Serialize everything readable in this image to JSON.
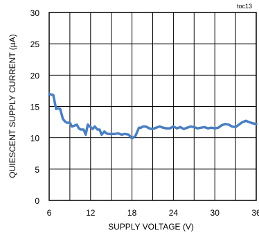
{
  "chart_data": {
    "type": "line",
    "tag": "toc13",
    "xlabel": "SUPPLY VOLTAGE (V)",
    "ylabel": "QUIESCENT SUPPLY CURRENT (µA)",
    "xlim": [
      6,
      36
    ],
    "ylim": [
      0,
      30
    ],
    "xticks": [
      6,
      12,
      18,
      24,
      30,
      36
    ],
    "xtick_labels": [
      "6",
      "12",
      "18",
      "24",
      "30",
      "36"
    ],
    "yticks": [
      0,
      5,
      10,
      15,
      20,
      25,
      30
    ],
    "ytick_labels": [
      "0",
      "5",
      "10",
      "15",
      "20",
      "25",
      "30"
    ],
    "grid": true,
    "line_color": "#4a7fc0",
    "series": [
      {
        "x": [
          6.0,
          6.3,
          6.6,
          7.0,
          7.3,
          7.6,
          8.0,
          8.3,
          8.6,
          9.0,
          9.3,
          9.6,
          10.0,
          10.3,
          10.6,
          11.0,
          11.3,
          11.6,
          12.0,
          12.3,
          12.6,
          13.0,
          13.3,
          13.6,
          14.0,
          14.3,
          14.6,
          15.0,
          15.5,
          16.0,
          16.5,
          17.0,
          17.5,
          18.0,
          18.5,
          19.0,
          19.3,
          19.6,
          20.0,
          20.5,
          21.0,
          21.5,
          22.0,
          22.5,
          23.0,
          23.5,
          24.0,
          24.5,
          25.0,
          25.5,
          26.0,
          26.5,
          27.0,
          27.5,
          28.0,
          28.5,
          29.0,
          29.5,
          30.0,
          30.5,
          31.0,
          31.5,
          32.0,
          32.5,
          33.0,
          33.5,
          34.0,
          34.5,
          35.0,
          35.5,
          36.0
        ],
        "values": [
          17.0,
          16.9,
          16.8,
          14.6,
          14.7,
          14.6,
          13.0,
          12.6,
          12.4,
          12.4,
          11.8,
          11.9,
          12.1,
          11.5,
          11.3,
          11.3,
          10.5,
          12.1,
          11.7,
          11.4,
          11.8,
          11.3,
          11.3,
          10.5,
          11.0,
          10.7,
          10.6,
          10.6,
          10.6,
          10.7,
          10.5,
          10.6,
          10.5,
          9.9,
          10.3,
          11.6,
          11.6,
          11.8,
          11.8,
          11.5,
          11.4,
          11.6,
          11.8,
          11.6,
          11.5,
          11.5,
          11.8,
          11.5,
          11.7,
          11.4,
          11.6,
          11.8,
          11.7,
          11.5,
          11.6,
          11.7,
          11.5,
          11.6,
          11.5,
          11.6,
          12.0,
          12.2,
          12.1,
          11.8,
          11.7,
          12.1,
          12.5,
          12.7,
          12.5,
          12.3,
          12.2
        ]
      }
    ]
  }
}
